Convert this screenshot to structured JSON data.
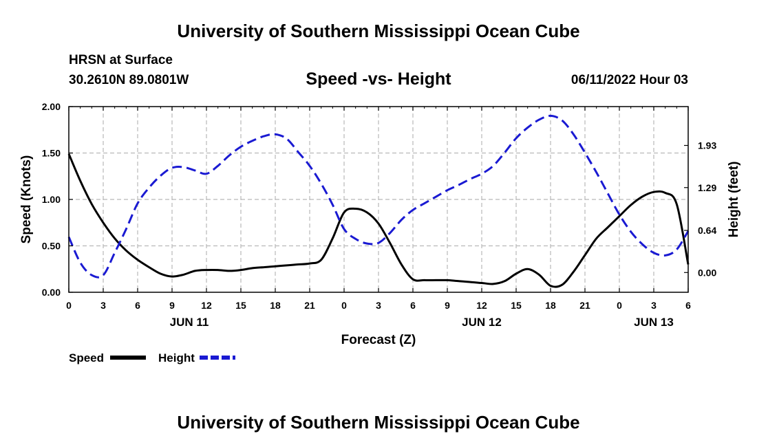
{
  "header": {
    "title": "University of Southern Mississippi Ocean Cube",
    "station": "HRSN at Surface",
    "coords": "30.2610N  89.0801W",
    "subtitle": "Speed -vs- Height",
    "datetime": "06/11/2022 Hour 03",
    "footer_title": "University of Southern Mississippi Ocean Cube"
  },
  "chart_data": {
    "type": "line",
    "title": "Speed -vs- Height",
    "xlabel": "Forecast (Z)",
    "ylabel": "Speed (Knots)",
    "y2label": "Height (feet)",
    "xlim": [
      0,
      54
    ],
    "ylim": [
      0,
      2.0
    ],
    "y2lim": [
      -0.3,
      2.52
    ],
    "grid": true,
    "x_ticks": [
      0,
      3,
      6,
      9,
      12,
      15,
      18,
      21,
      24,
      27,
      30,
      33,
      36,
      39,
      42,
      45,
      48,
      51,
      54
    ],
    "x_tick_labels": [
      "0",
      "3",
      "6",
      "9",
      "12",
      "15",
      "18",
      "21",
      "0",
      "3",
      "6",
      "9",
      "12",
      "15",
      "18",
      "21",
      "0",
      "3",
      "6"
    ],
    "date_labels": [
      {
        "label": "JUN 11",
        "x": 10.5
      },
      {
        "label": "JUN 12",
        "x": 36
      },
      {
        "label": "JUN 13",
        "x": 51
      }
    ],
    "y_ticks": [
      0.0,
      0.5,
      1.0,
      1.5,
      2.0
    ],
    "y_tick_labels": [
      "0.00",
      "0.50",
      "1.00",
      "1.50",
      "2.00"
    ],
    "y2_ticks": [
      0.0,
      0.64,
      1.29,
      1.93
    ],
    "y2_tick_labels": [
      "0.00",
      "0.64",
      "1.29",
      "1.93"
    ],
    "legend": "bottom-left",
    "series": [
      {
        "name": "Speed",
        "axis": "left",
        "color": "#000000",
        "dash": false,
        "x": [
          0,
          1,
          2,
          3,
          4,
          5,
          6,
          7,
          8,
          9,
          10,
          11,
          12,
          13,
          14,
          15,
          16,
          17,
          18,
          19,
          20,
          21,
          22,
          23,
          24,
          25,
          26,
          27,
          28,
          29,
          30,
          31,
          32,
          33,
          34,
          35,
          36,
          37,
          38,
          39,
          40,
          41,
          42,
          43,
          44,
          45,
          46,
          47,
          48,
          49,
          50,
          51,
          52,
          53,
          54
        ],
        "values": [
          1.49,
          1.2,
          0.95,
          0.75,
          0.58,
          0.45,
          0.35,
          0.27,
          0.2,
          0.17,
          0.19,
          0.23,
          0.24,
          0.24,
          0.23,
          0.24,
          0.26,
          0.27,
          0.28,
          0.29,
          0.3,
          0.31,
          0.35,
          0.58,
          0.86,
          0.9,
          0.86,
          0.74,
          0.53,
          0.3,
          0.14,
          0.13,
          0.13,
          0.13,
          0.12,
          0.11,
          0.1,
          0.09,
          0.12,
          0.2,
          0.25,
          0.19,
          0.07,
          0.08,
          0.22,
          0.4,
          0.58,
          0.7,
          0.82,
          0.94,
          1.03,
          1.08,
          1.07,
          0.95,
          0.3
        ]
      },
      {
        "name": "Height",
        "axis": "right",
        "color": "#1a1ad2",
        "dash": true,
        "x": [
          0,
          1,
          2,
          3,
          4,
          5,
          6,
          7,
          8,
          9,
          10,
          11,
          12,
          13,
          14,
          15,
          16,
          17,
          18,
          19,
          20,
          21,
          22,
          23,
          24,
          25,
          26,
          27,
          28,
          29,
          30,
          31,
          32,
          33,
          34,
          35,
          36,
          37,
          38,
          39,
          40,
          41,
          42,
          43,
          44,
          45,
          46,
          47,
          48,
          49,
          50,
          51,
          52,
          53,
          54
        ],
        "values": [
          0.54,
          0.15,
          -0.04,
          -0.04,
          0.3,
          0.66,
          1.05,
          1.29,
          1.47,
          1.59,
          1.6,
          1.55,
          1.5,
          1.62,
          1.78,
          1.91,
          2.0,
          2.07,
          2.1,
          2.03,
          1.83,
          1.62,
          1.35,
          1.03,
          0.66,
          0.51,
          0.44,
          0.45,
          0.6,
          0.8,
          0.95,
          1.05,
          1.15,
          1.25,
          1.33,
          1.42,
          1.5,
          1.62,
          1.82,
          2.04,
          2.2,
          2.32,
          2.38,
          2.31,
          2.1,
          1.82,
          1.52,
          1.2,
          0.88,
          0.62,
          0.43,
          0.3,
          0.26,
          0.35,
          0.63
        ]
      }
    ]
  }
}
